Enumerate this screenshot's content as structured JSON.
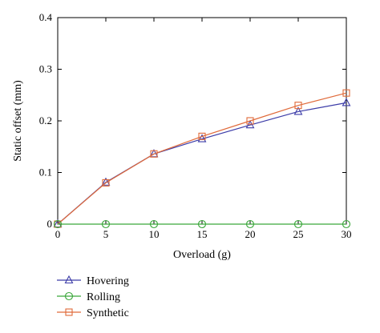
{
  "chart_data": {
    "type": "line",
    "title": "",
    "xlabel": "Overload (g)",
    "ylabel": "Static offset (mm)",
    "x": [
      0,
      5,
      10,
      15,
      20,
      25,
      30
    ],
    "xlim": [
      0,
      30
    ],
    "ylim": [
      0,
      0.4
    ],
    "x_ticks": [
      "0",
      "5",
      "10",
      "15",
      "20",
      "25",
      "30"
    ],
    "y_ticks": [
      "0",
      "0.1",
      "0.2",
      "0.3",
      "0.4"
    ],
    "grid": false,
    "legend_position": "bottom-left, below plot",
    "series": [
      {
        "name": "Hovering",
        "marker": "triangle",
        "color": "#3c3ca8",
        "values": [
          0,
          0.081,
          0.136,
          0.165,
          0.192,
          0.218,
          0.235
        ]
      },
      {
        "name": "Rolling",
        "marker": "circle",
        "color": "#3aa63a",
        "values": [
          0,
          0,
          0,
          0,
          0,
          0,
          0
        ]
      },
      {
        "name": "Synthetic",
        "marker": "square",
        "color": "#e06a3a",
        "values": [
          0,
          0.08,
          0.136,
          0.17,
          0.2,
          0.23,
          0.254
        ]
      }
    ]
  }
}
